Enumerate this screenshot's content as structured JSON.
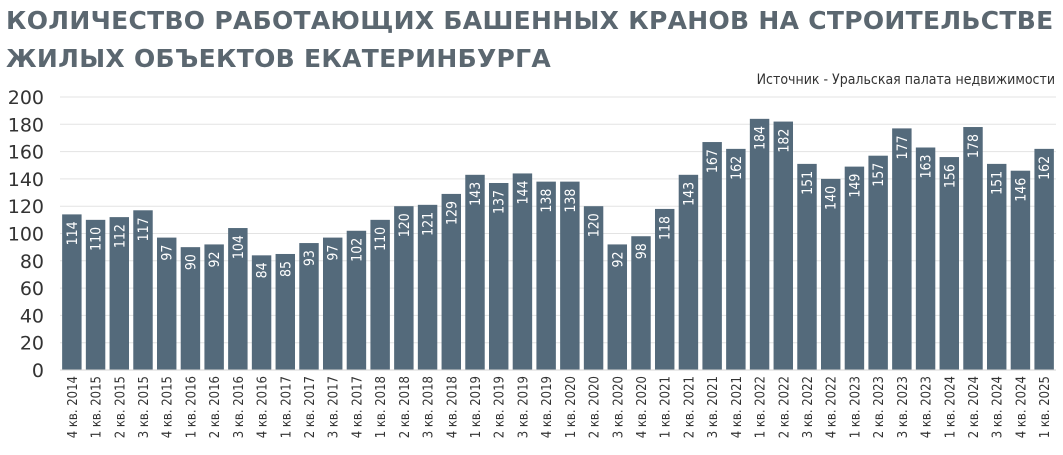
{
  "chart_data": {
    "type": "bar",
    "title_lines": [
      "КОЛИЧЕСТВО РАБОТАЮЩИХ БАШЕННЫХ КРАНОВ НА СТРОИТЕЛЬСТВЕ",
      "ЖИЛЫХ ОБЪЕКТОВ ЕКАТЕРИНБУРГА"
    ],
    "source": "Источник - Уральская палата недвижимости",
    "xlabel": "",
    "ylabel": "",
    "ylim": [
      0,
      200
    ],
    "yticks": [
      0,
      20,
      40,
      60,
      80,
      100,
      120,
      140,
      160,
      180,
      200
    ],
    "grid": true,
    "legend": "none",
    "bar_color": "#546a7b",
    "label_color": "#ffffff",
    "categories": [
      "4 кв. 2014",
      "1 кв. 2015",
      "2 кв. 2015",
      "3 кв. 2015",
      "4 кв. 2015",
      "1 кв. 2016",
      "2 кв. 2016",
      "3 кв. 2016",
      "4 кв. 2016",
      "1 кв. 2017",
      "2 кв. 2017",
      "3 кв. 2017",
      "4 кв. 2017",
      "1 кв. 2018",
      "2 кв. 2018",
      "3 кв. 2018",
      "4 кв. 2018",
      "1 кв. 2019",
      "2 кв. 2019",
      "3 кв. 2019",
      "4 кв. 2019",
      "1 кв. 2020",
      "2 кв. 2020",
      "3 кв. 2020",
      "4 кв. 2020",
      "1 кв. 2021",
      "2 кв. 2021",
      "3 кв. 2021",
      "4 кв. 2021",
      "1 кв. 2022",
      "2 кв. 2022",
      "3 кв. 2022",
      "4 кв. 2022",
      "1 кв. 2023",
      "2 кв. 2023",
      "3 кв. 2023",
      "4 кв. 2023",
      "1 кв. 2024",
      "2 кв. 2024",
      "3 кв. 2024",
      "4 кв. 2024",
      "1 кв. 2025"
    ],
    "values": [
      114,
      110,
      112,
      117,
      97,
      90,
      92,
      104,
      84,
      85,
      93,
      97,
      102,
      110,
      120,
      121,
      129,
      143,
      137,
      144,
      138,
      138,
      120,
      92,
      98,
      118,
      143,
      167,
      162,
      184,
      182,
      151,
      140,
      149,
      157,
      177,
      163,
      156,
      178,
      151,
      146,
      162
    ]
  }
}
